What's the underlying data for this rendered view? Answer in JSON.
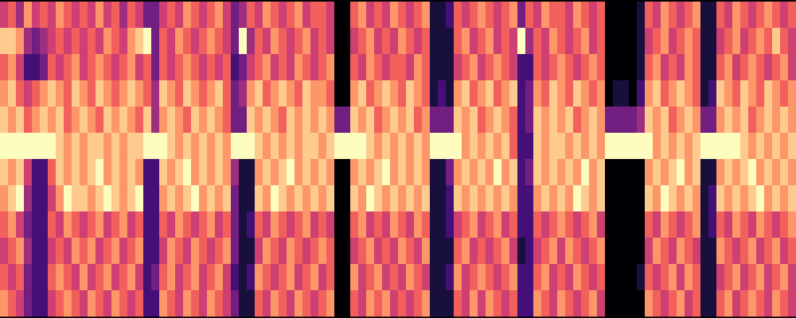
{
  "chart_data": {
    "type": "heatmap",
    "tick_labels": false,
    "color_range": [
      0,
      9
    ],
    "cells": [
      [
        5,
        6,
        4,
        7,
        5,
        6,
        5,
        7,
        6,
        5,
        6,
        5,
        7,
        5,
        6,
        4,
        6,
        5,
        3,
        3,
        5,
        6,
        5,
        7,
        6,
        5,
        6,
        7,
        5,
        3,
        4,
        6,
        5,
        7,
        6,
        5,
        6,
        7,
        5,
        6,
        6,
        5,
        0,
        0,
        6,
        7,
        5,
        6,
        5,
        7,
        6,
        5,
        6,
        7,
        1,
        1,
        2,
        6,
        5,
        6,
        7,
        6,
        5,
        6,
        7,
        3,
        6,
        5,
        7,
        6,
        6,
        5,
        7,
        6,
        5,
        6,
        0,
        0,
        0,
        0,
        1,
        6,
        5,
        7,
        6,
        5,
        6,
        7,
        1,
        1,
        6,
        5,
        7,
        6,
        5,
        6,
        7,
        6,
        5,
        6
      ],
      [
        8,
        8,
        7,
        4,
        3,
        4,
        5,
        6,
        5,
        6,
        5,
        6,
        5,
        7,
        6,
        5,
        7,
        8,
        9,
        3,
        6,
        5,
        7,
        6,
        5,
        6,
        7,
        6,
        5,
        3,
        9,
        4,
        6,
        5,
        7,
        6,
        5,
        6,
        7,
        5,
        6,
        5,
        0,
        0,
        5,
        6,
        7,
        5,
        6,
        5,
        7,
        6,
        5,
        6,
        1,
        1,
        1,
        6,
        7,
        5,
        6,
        7,
        5,
        6,
        5,
        9,
        4,
        6,
        5,
        7,
        6,
        5,
        6,
        7,
        5,
        6,
        0,
        0,
        0,
        0,
        1,
        5,
        6,
        7,
        5,
        6,
        7,
        6,
        1,
        1,
        5,
        6,
        7,
        5,
        6,
        7,
        6,
        8,
        6,
        5
      ],
      [
        6,
        7,
        5,
        2,
        2,
        3,
        6,
        5,
        6,
        7,
        5,
        6,
        7,
        6,
        5,
        6,
        7,
        5,
        6,
        3,
        6,
        5,
        6,
        7,
        6,
        5,
        6,
        5,
        6,
        2,
        3,
        5,
        6,
        7,
        5,
        6,
        5,
        7,
        6,
        5,
        6,
        7,
        0,
        0,
        6,
        5,
        7,
        6,
        5,
        6,
        6,
        5,
        7,
        6,
        1,
        1,
        1,
        5,
        6,
        7,
        5,
        6,
        7,
        6,
        5,
        2,
        2,
        6,
        5,
        6,
        7,
        6,
        5,
        6,
        7,
        6,
        0,
        0,
        0,
        0,
        1,
        6,
        7,
        5,
        6,
        5,
        7,
        6,
        1,
        1,
        6,
        7,
        5,
        6,
        7,
        6,
        5,
        6,
        7,
        5
      ],
      [
        7,
        8,
        6,
        5,
        6,
        7,
        8,
        7,
        6,
        8,
        7,
        6,
        8,
        7,
        6,
        7,
        8,
        7,
        6,
        4,
        8,
        7,
        6,
        8,
        7,
        6,
        7,
        8,
        6,
        3,
        4,
        7,
        8,
        6,
        7,
        8,
        7,
        6,
        8,
        7,
        7,
        6,
        0,
        0,
        7,
        8,
        6,
        7,
        8,
        7,
        6,
        8,
        7,
        6,
        1,
        2,
        1,
        7,
        8,
        6,
        7,
        8,
        6,
        7,
        8,
        2,
        3,
        7,
        6,
        8,
        7,
        6,
        8,
        7,
        6,
        7,
        0,
        1,
        1,
        0,
        2,
        7,
        8,
        6,
        7,
        8,
        7,
        6,
        1,
        2,
        8,
        7,
        6,
        8,
        7,
        6,
        8,
        7,
        6,
        7
      ],
      [
        8,
        7,
        8,
        6,
        7,
        8,
        7,
        8,
        6,
        7,
        8,
        7,
        6,
        8,
        7,
        8,
        7,
        6,
        8,
        4,
        7,
        8,
        7,
        6,
        8,
        7,
        8,
        7,
        6,
        3,
        3,
        8,
        7,
        8,
        7,
        6,
        8,
        7,
        8,
        7,
        8,
        7,
        3,
        3,
        8,
        7,
        8,
        6,
        7,
        8,
        7,
        8,
        6,
        7,
        3,
        3,
        3,
        8,
        7,
        8,
        6,
        7,
        8,
        7,
        6,
        2,
        3,
        8,
        7,
        8,
        7,
        8,
        6,
        7,
        8,
        7,
        3,
        3,
        3,
        3,
        4,
        8,
        7,
        8,
        6,
        7,
        8,
        7,
        3,
        3,
        7,
        8,
        7,
        8,
        6,
        7,
        8,
        7,
        8,
        7
      ],
      [
        9,
        9,
        9,
        9,
        9,
        9,
        9,
        8,
        7,
        8,
        7,
        8,
        8,
        7,
        8,
        7,
        8,
        8,
        9,
        9,
        9,
        8,
        7,
        8,
        7,
        8,
        7,
        8,
        7,
        9,
        9,
        9,
        8,
        7,
        8,
        7,
        8,
        7,
        8,
        8,
        7,
        8,
        9,
        9,
        9,
        9,
        8,
        7,
        8,
        7,
        8,
        7,
        8,
        7,
        9,
        9,
        9,
        9,
        7,
        8,
        7,
        8,
        7,
        8,
        6,
        2,
        2,
        8,
        7,
        8,
        8,
        7,
        8,
        7,
        8,
        7,
        9,
        9,
        9,
        9,
        9,
        9,
        7,
        8,
        7,
        8,
        7,
        8,
        9,
        9,
        9,
        9,
        9,
        8,
        7,
        8,
        7,
        8,
        7,
        8
      ],
      [
        8,
        7,
        8,
        5,
        2,
        2,
        6,
        8,
        7,
        8,
        7,
        8,
        9,
        7,
        8,
        7,
        8,
        7,
        2,
        2,
        8,
        7,
        8,
        9,
        7,
        8,
        7,
        8,
        7,
        4,
        1,
        1,
        7,
        8,
        7,
        8,
        9,
        7,
        8,
        7,
        8,
        7,
        0,
        0,
        7,
        8,
        7,
        8,
        9,
        7,
        8,
        7,
        8,
        7,
        1,
        1,
        3,
        7,
        8,
        7,
        8,
        7,
        9,
        7,
        8,
        2,
        3,
        8,
        7,
        8,
        7,
        8,
        7,
        9,
        7,
        8,
        0,
        0,
        0,
        0,
        0,
        7,
        8,
        7,
        8,
        9,
        7,
        8,
        1,
        1,
        7,
        8,
        7,
        8,
        9,
        7,
        8,
        7,
        8,
        7
      ],
      [
        7,
        8,
        9,
        4,
        2,
        2,
        5,
        7,
        9,
        8,
        8,
        7,
        8,
        9,
        8,
        7,
        8,
        9,
        2,
        2,
        7,
        8,
        7,
        8,
        9,
        7,
        8,
        7,
        8,
        3,
        1,
        1,
        8,
        7,
        9,
        8,
        7,
        8,
        7,
        8,
        7,
        8,
        0,
        0,
        8,
        7,
        9,
        8,
        7,
        8,
        7,
        8,
        7,
        8,
        1,
        1,
        2,
        8,
        7,
        8,
        7,
        8,
        7,
        8,
        7,
        2,
        2,
        7,
        8,
        7,
        8,
        7,
        9,
        8,
        7,
        8,
        0,
        0,
        0,
        0,
        0,
        8,
        7,
        9,
        8,
        7,
        8,
        7,
        1,
        2,
        8,
        7,
        8,
        7,
        8,
        9,
        7,
        8,
        7,
        8
      ],
      [
        6,
        7,
        5,
        3,
        2,
        2,
        6,
        5,
        7,
        6,
        5,
        6,
        7,
        5,
        6,
        7,
        5,
        6,
        2,
        2,
        6,
        5,
        7,
        6,
        5,
        6,
        7,
        5,
        6,
        3,
        1,
        2,
        6,
        5,
        7,
        6,
        5,
        6,
        7,
        5,
        6,
        5,
        0,
        0,
        6,
        7,
        5,
        6,
        5,
        7,
        6,
        5,
        7,
        6,
        1,
        1,
        2,
        5,
        6,
        7,
        5,
        6,
        7,
        5,
        6,
        2,
        2,
        6,
        5,
        6,
        7,
        6,
        5,
        6,
        7,
        5,
        0,
        0,
        0,
        0,
        0,
        6,
        5,
        7,
        6,
        5,
        6,
        7,
        1,
        2,
        6,
        5,
        7,
        6,
        5,
        7,
        6,
        5,
        6,
        7
      ],
      [
        5,
        6,
        7,
        4,
        2,
        2,
        5,
        6,
        5,
        7,
        6,
        7,
        5,
        6,
        7,
        5,
        6,
        7,
        2,
        2,
        5,
        7,
        6,
        5,
        7,
        6,
        5,
        6,
        7,
        3,
        1,
        1,
        5,
        7,
        6,
        5,
        7,
        6,
        5,
        6,
        7,
        6,
        0,
        0,
        5,
        6,
        7,
        5,
        6,
        5,
        7,
        6,
        5,
        7,
        1,
        1,
        1,
        6,
        7,
        5,
        6,
        5,
        6,
        7,
        5,
        1,
        2,
        5,
        6,
        7,
        5,
        7,
        6,
        5,
        6,
        7,
        0,
        0,
        0,
        0,
        0,
        5,
        7,
        6,
        5,
        7,
        6,
        5,
        1,
        1,
        7,
        6,
        5,
        6,
        7,
        5,
        6,
        7,
        5,
        6
      ],
      [
        6,
        5,
        6,
        3,
        2,
        2,
        6,
        7,
        6,
        5,
        7,
        5,
        6,
        7,
        5,
        6,
        7,
        5,
        2,
        3,
        6,
        7,
        5,
        6,
        7,
        5,
        6,
        7,
        5,
        2,
        1,
        2,
        7,
        6,
        5,
        6,
        7,
        5,
        6,
        7,
        5,
        6,
        0,
        0,
        7,
        5,
        6,
        7,
        5,
        6,
        5,
        7,
        6,
        5,
        1,
        1,
        2,
        7,
        5,
        6,
        7,
        6,
        5,
        6,
        7,
        2,
        2,
        6,
        7,
        5,
        6,
        5,
        7,
        6,
        5,
        6,
        0,
        0,
        0,
        0,
        1,
        6,
        5,
        6,
        7,
        5,
        7,
        6,
        1,
        1,
        5,
        6,
        7,
        5,
        6,
        7,
        5,
        6,
        7,
        5
      ],
      [
        7,
        6,
        5,
        3,
        2,
        2,
        5,
        6,
        7,
        6,
        5,
        7,
        6,
        5,
        7,
        6,
        5,
        6,
        2,
        2,
        7,
        6,
        5,
        7,
        6,
        5,
        7,
        6,
        5,
        3,
        1,
        1,
        6,
        5,
        7,
        6,
        5,
        7,
        6,
        5,
        6,
        7,
        0,
        0,
        6,
        5,
        7,
        6,
        7,
        5,
        6,
        5,
        6,
        7,
        1,
        1,
        1,
        6,
        5,
        7,
        5,
        7,
        6,
        5,
        6,
        2,
        2,
        7,
        6,
        5,
        7,
        6,
        5,
        6,
        7,
        5,
        0,
        0,
        0,
        0,
        0,
        7,
        6,
        5,
        6,
        7,
        5,
        6,
        1,
        1,
        6,
        7,
        5,
        6,
        7,
        6,
        5,
        7,
        6,
        5
      ]
    ]
  }
}
